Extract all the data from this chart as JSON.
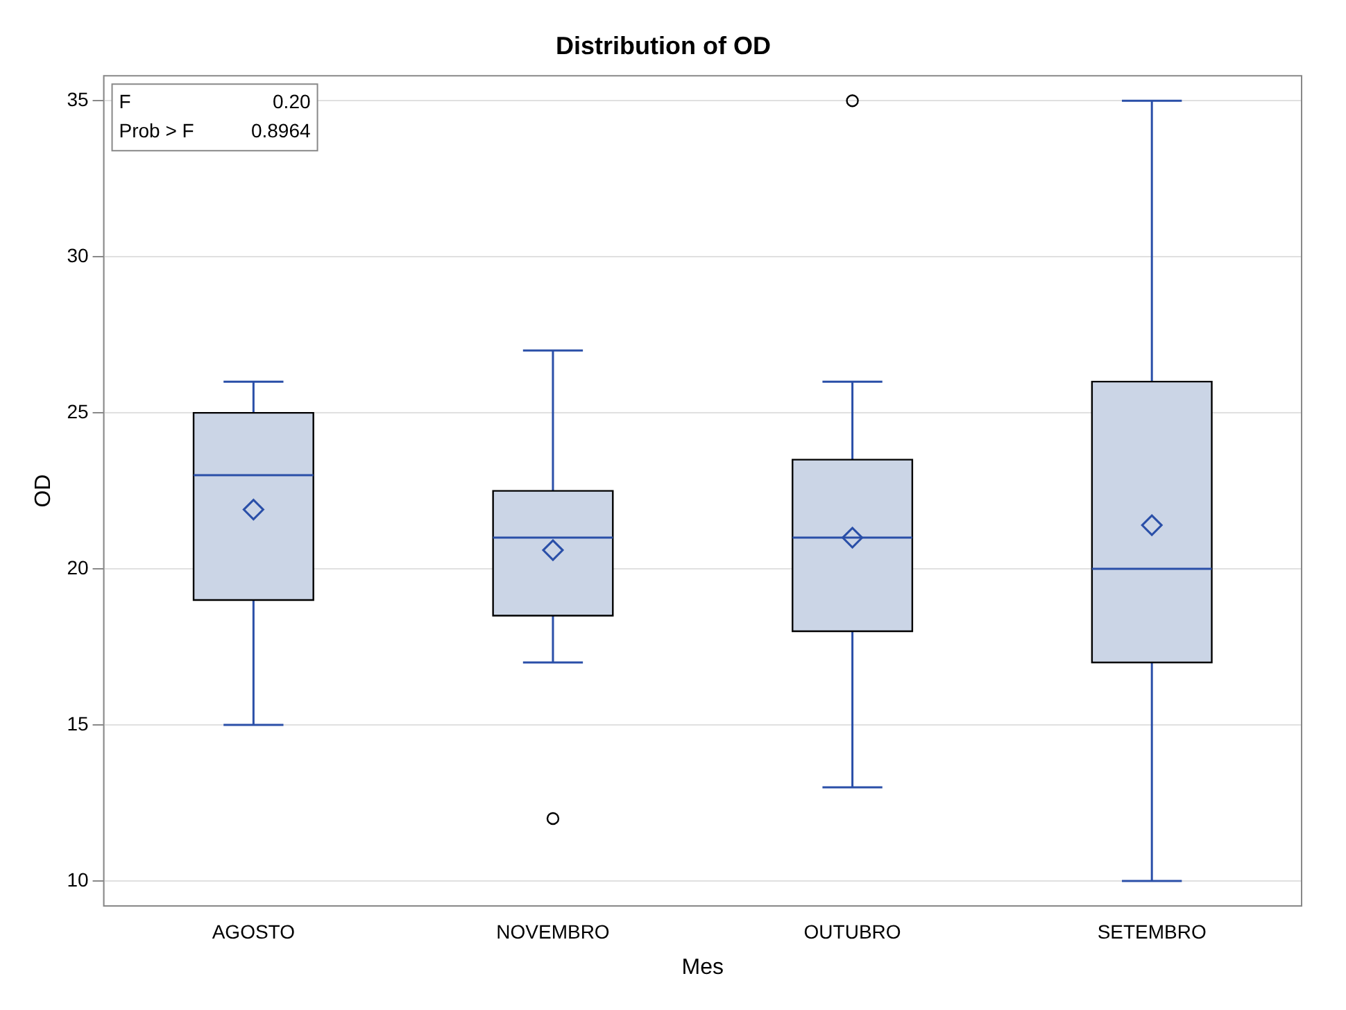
{
  "chart_data": {
    "type": "box",
    "title": "Distribution of OD",
    "xlabel": "Mes",
    "ylabel": "OD",
    "categories": [
      "AGOSTO",
      "NOVEMBRO",
      "OUTUBRO",
      "SETEMBRO"
    ],
    "boxes": [
      {
        "low": 15,
        "q1": 19,
        "median": 23,
        "q3": 25,
        "high": 26,
        "mean": 21.9
      },
      {
        "low": 17,
        "q1": 18.5,
        "median": 21,
        "q3": 22.5,
        "high": 27,
        "mean": 20.6,
        "outliers": [
          12
        ]
      },
      {
        "low": 13,
        "q1": 18,
        "median": 21,
        "q3": 23.5,
        "high": 26,
        "mean": 21.0,
        "outliers": [
          35
        ]
      },
      {
        "low": 10,
        "q1": 17,
        "median": 20,
        "q3": 26,
        "high": 35,
        "mean": 21.4
      }
    ],
    "color": "#cbd5e6",
    "ylim": [
      9.2,
      35.8
    ],
    "yticks": [
      10,
      15,
      20,
      25,
      30,
      35
    ],
    "grid": "y",
    "marker": "diamond",
    "legend": false,
    "annotations": [
      "F",
      "0.20",
      "Prob > F",
      "0.8964"
    ]
  }
}
